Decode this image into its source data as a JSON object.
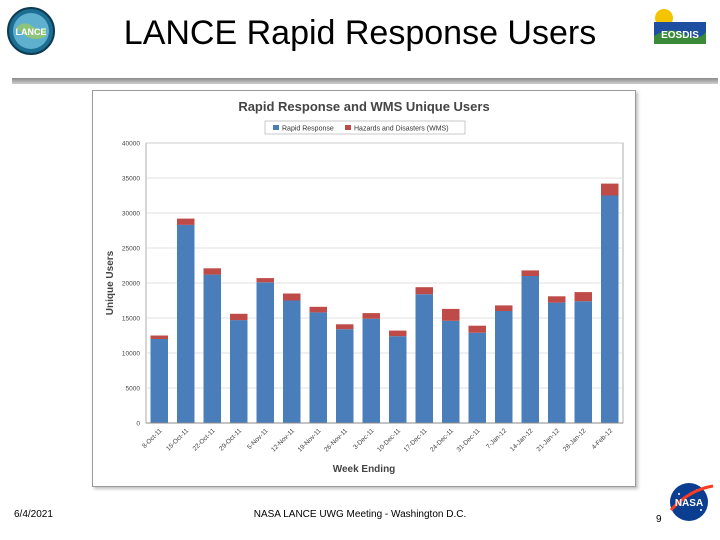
{
  "slide": {
    "title": "LANCE Rapid Response Users",
    "date": "6/4/2021",
    "footer": "NASA LANCE UWG Meeting - Washington D.C.",
    "page_number": "9",
    "left_logo_text": "LANCE",
    "right_logo_text": "EOSDIS",
    "nasa_logo_text": "NASA"
  },
  "chart_data": {
    "type": "bar",
    "stacked": true,
    "title": "Rapid Response and WMS Unique Users",
    "xlabel": "Week Ending",
    "ylabel": "Unique Users",
    "ylim": [
      0,
      40000
    ],
    "yticks": [
      0,
      5000,
      10000,
      15000,
      20000,
      25000,
      30000,
      35000,
      40000
    ],
    "legend_position": "top",
    "categories": [
      "8-Oct-11",
      "15-Oct-11",
      "22-Oct-11",
      "29-Oct-11",
      "5-Nov-11",
      "12-Nov-11",
      "19-Nov-11",
      "26-Nov-11",
      "3-Dec-11",
      "10-Dec-11",
      "17-Dec-11",
      "24-Dec-11",
      "31-Dec-11",
      "7-Jan-12",
      "14-Jan-12",
      "21-Jan-12",
      "28-Jan-12",
      "4-Feb-12"
    ],
    "series": [
      {
        "name": "Rapid Response",
        "color": "#4a7ebb",
        "values": [
          12000,
          28300,
          21200,
          14700,
          20100,
          17500,
          15800,
          13400,
          14900,
          12400,
          18400,
          14600,
          12900,
          16000,
          21000,
          17200,
          17400,
          32500
        ]
      },
      {
        "name": "Hazards and Disasters (WMS)",
        "color": "#be4b48",
        "values": [
          500,
          900,
          900,
          900,
          600,
          1000,
          800,
          700,
          800,
          800,
          1000,
          1700,
          1000,
          800,
          800,
          900,
          1300,
          1700
        ]
      }
    ]
  }
}
